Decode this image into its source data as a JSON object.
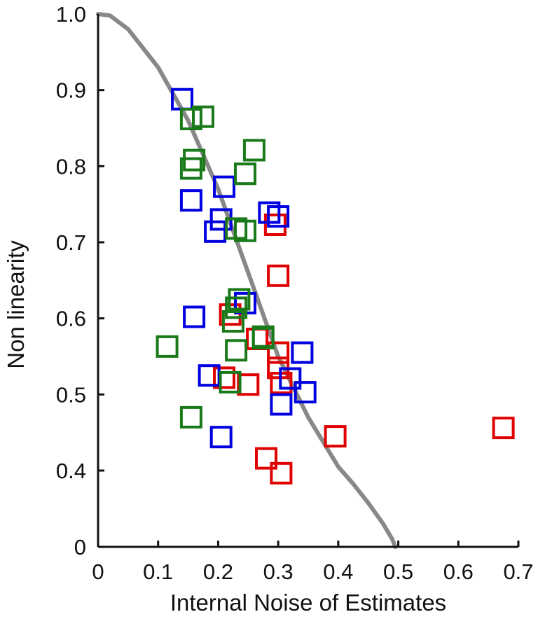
{
  "chart_data": {
    "type": "scatter",
    "xlabel": "Internal Noise of Estimates",
    "ylabel": "Non linearity",
    "xlim": [
      0,
      0.7
    ],
    "x_ticks": [
      "0",
      "0.1",
      "0.2",
      "0.3",
      "0.4",
      "0.5",
      "0.6",
      "0.7"
    ],
    "y_ticks": [
      {
        "value": 0,
        "label": "0"
      },
      {
        "value": 0.4,
        "label": "0.4"
      },
      {
        "value": 0.5,
        "label": "0.5"
      },
      {
        "value": 0.6,
        "label": "0.6"
      },
      {
        "value": 0.7,
        "label": "0.7"
      },
      {
        "value": 0.8,
        "label": "0.8"
      },
      {
        "value": 0.9,
        "label": "0.9"
      },
      {
        "value": 1.0,
        "label": "1.0"
      }
    ],
    "y_axis_break": "0 to 0.4 compressed",
    "grid": false,
    "curve": {
      "color": "#888888",
      "points": [
        [
          0.0,
          1.0
        ],
        [
          0.02,
          0.998
        ],
        [
          0.05,
          0.98
        ],
        [
          0.1,
          0.93
        ],
        [
          0.15,
          0.86
        ],
        [
          0.2,
          0.77
        ],
        [
          0.25,
          0.66
        ],
        [
          0.3,
          0.55
        ],
        [
          0.35,
          0.47
        ],
        [
          0.4,
          0.405
        ],
        [
          0.425,
          0.33
        ],
        [
          0.45,
          0.23
        ],
        [
          0.475,
          0.12
        ],
        [
          0.49,
          0.04
        ],
        [
          0.495,
          0.0
        ]
      ]
    },
    "series": [
      {
        "color": "#e00000",
        "points": [
          [
            0.675,
            0.456
          ],
          [
            0.395,
            0.445
          ],
          [
            0.3,
            0.656
          ],
          [
            0.295,
            0.723
          ],
          [
            0.28,
            0.416
          ],
          [
            0.305,
            0.386
          ],
          [
            0.25,
            0.513
          ],
          [
            0.21,
            0.522
          ],
          [
            0.305,
            0.515
          ],
          [
            0.3,
            0.535
          ],
          [
            0.3,
            0.555
          ],
          [
            0.265,
            0.573
          ],
          [
            0.22,
            0.605
          ]
        ]
      },
      {
        "color": "#0000e0",
        "points": [
          [
            0.14,
            0.888
          ],
          [
            0.21,
            0.773
          ],
          [
            0.155,
            0.755
          ],
          [
            0.205,
            0.73
          ],
          [
            0.195,
            0.714
          ],
          [
            0.285,
            0.739
          ],
          [
            0.3,
            0.734
          ],
          [
            0.16,
            0.602
          ],
          [
            0.245,
            0.62
          ],
          [
            0.185,
            0.525
          ],
          [
            0.205,
            0.444
          ],
          [
            0.34,
            0.555
          ],
          [
            0.32,
            0.521
          ],
          [
            0.345,
            0.503
          ],
          [
            0.305,
            0.487
          ]
        ]
      },
      {
        "color": "#1a7a1a",
        "points": [
          [
            0.175,
            0.865
          ],
          [
            0.155,
            0.862
          ],
          [
            0.16,
            0.808
          ],
          [
            0.155,
            0.797
          ],
          [
            0.26,
            0.821
          ],
          [
            0.245,
            0.79
          ],
          [
            0.23,
            0.718
          ],
          [
            0.245,
            0.715
          ],
          [
            0.235,
            0.625
          ],
          [
            0.23,
            0.614
          ],
          [
            0.225,
            0.596
          ],
          [
            0.275,
            0.576
          ],
          [
            0.275,
            0.574
          ],
          [
            0.115,
            0.563
          ],
          [
            0.23,
            0.558
          ],
          [
            0.22,
            0.516
          ],
          [
            0.155,
            0.47
          ]
        ]
      }
    ]
  }
}
